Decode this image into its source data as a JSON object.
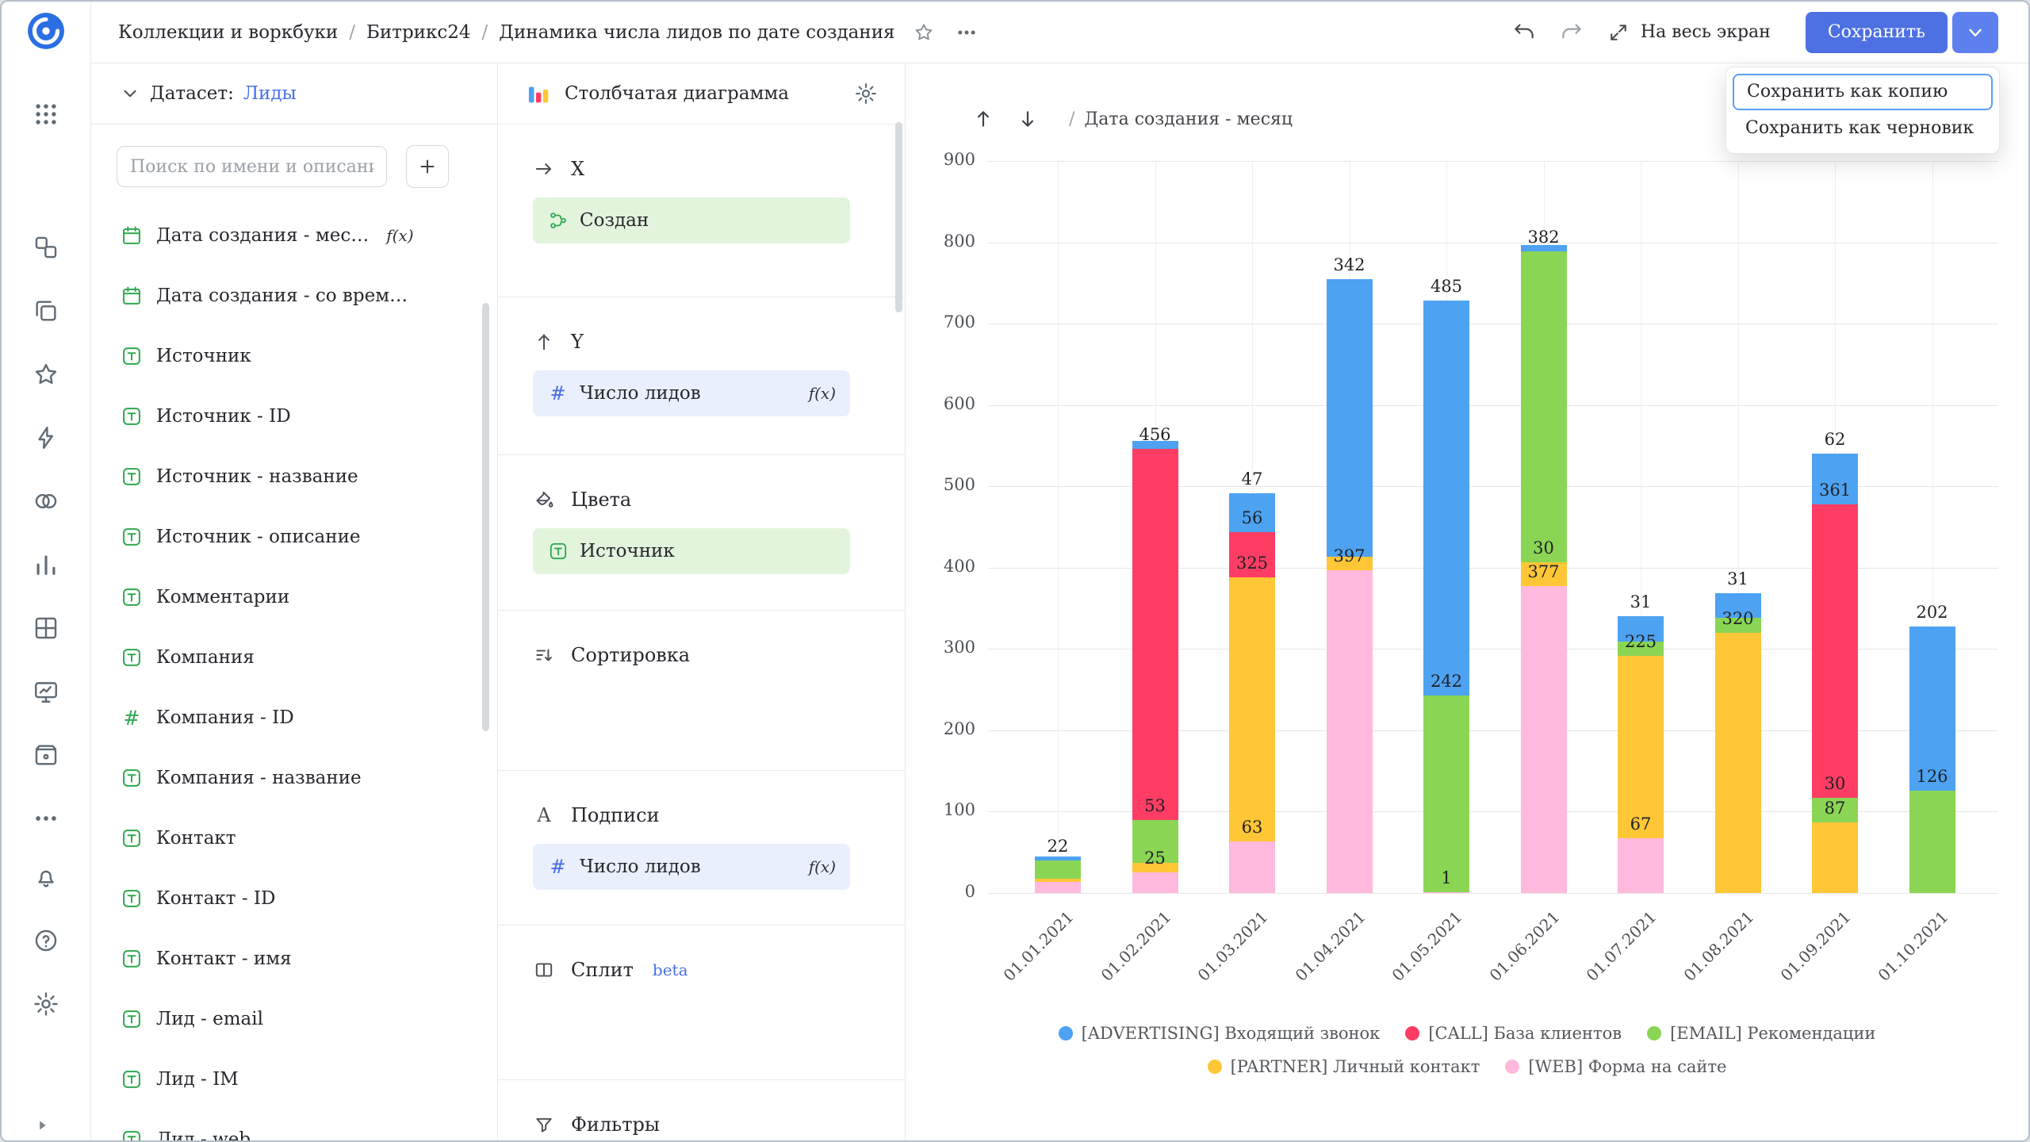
{
  "glyphs": {
    "fx": "f(x)",
    "hash": "#",
    "labels_letter": "A"
  },
  "colors": {
    "accent_blue": "#4d70e2",
    "link_blue": "#4a6fe8",
    "field_green": "#2fa84f"
  },
  "rail_icons": [
    "datalens-logo",
    "services-grid",
    "collections",
    "workbooks",
    "favorites",
    "connections",
    "datasets",
    "charts",
    "dashboards",
    "monitoring",
    "storage",
    "more",
    "notifications",
    "help",
    "settings",
    "collapse-sidebar"
  ],
  "header": {
    "breadcrumbs": [
      "Коллекции и воркбуки",
      "Битрикс24",
      "Динамика числа лидов по дате создания"
    ],
    "breadcrumb_separator": "/",
    "fullscreen_label": "На весь экран",
    "save_label": "Сохранить"
  },
  "save_menu": {
    "items": [
      {
        "label": "Сохранить как копию",
        "focused": true
      },
      {
        "label": "Сохранить как черновик",
        "focused": false
      }
    ]
  },
  "dataset_panel": {
    "dataset_label": "Датасет:",
    "dataset_name": "Лиды",
    "search_placeholder": "Поиск по имени и описани",
    "fields": [
      {
        "label": "Дата создания - мес…",
        "icon": "calendar",
        "fx": true
      },
      {
        "label": "Дата создания - со врем…",
        "icon": "calendar",
        "fx": false
      },
      {
        "label": "Источник",
        "icon": "string",
        "fx": false
      },
      {
        "label": "Источник - ID",
        "icon": "string",
        "fx": false
      },
      {
        "label": "Источник - название",
        "icon": "string",
        "fx": false
      },
      {
        "label": "Источник - описание",
        "icon": "string",
        "fx": false
      },
      {
        "label": "Комментарии",
        "icon": "string",
        "fx": false
      },
      {
        "label": "Компания",
        "icon": "string",
        "fx": false
      },
      {
        "label": "Компания - ID",
        "icon": "number",
        "fx": false
      },
      {
        "label": "Компания - название",
        "icon": "string",
        "fx": false
      },
      {
        "label": "Контакт",
        "icon": "string",
        "fx": false
      },
      {
        "label": "Контакт - ID",
        "icon": "string",
        "fx": false
      },
      {
        "label": "Контакт - имя",
        "icon": "string",
        "fx": false
      },
      {
        "label": "Лид - email",
        "icon": "string",
        "fx": false
      },
      {
        "label": "Лид - IM",
        "icon": "string",
        "fx": false
      },
      {
        "label": "Лид - web",
        "icon": "string",
        "fx": false
      }
    ]
  },
  "config_panel": {
    "chart_type_label": "Столбчатая диаграмма",
    "sections": {
      "x": {
        "label": "X"
      },
      "y": {
        "label": "Y"
      },
      "colors": {
        "label": "Цвета"
      },
      "sort": {
        "label": "Сортировка"
      },
      "labels": {
        "label": "Подписи"
      },
      "split": {
        "label": "Сплит",
        "badge": "beta"
      },
      "filters": {
        "label": "Фильтры"
      }
    },
    "pills": {
      "x": {
        "label": "Создан",
        "kind": "dimension",
        "icon": "hierarchy-icon",
        "fx": false
      },
      "y": {
        "label": "Число лидов",
        "kind": "measure",
        "icon": "hash-icon",
        "fx": true
      },
      "colors": {
        "label": "Источник",
        "kind": "dimension",
        "icon": "string-icon",
        "fx": false
      },
      "labels": {
        "label": "Число лидов",
        "kind": "measure",
        "icon": "hash-icon",
        "fx": true
      }
    }
  },
  "chart_header": {
    "separator": "/",
    "x_field": "Дата создания - месяц"
  },
  "chart_data": {
    "type": "bar",
    "stacked": true,
    "title": "",
    "xlabel": "Дата создания - месяц",
    "ylabel": "Число лидов",
    "categories": [
      "01.01.2021",
      "01.02.2021",
      "01.03.2021",
      "01.04.2021",
      "01.05.2021",
      "01.06.2021",
      "01.07.2021",
      "01.08.2021",
      "01.09.2021",
      "01.10.2021"
    ],
    "series": [
      {
        "name": "[WEB] Форма на сайте",
        "color": "#ffb9dd",
        "values": [
          14,
          25,
          63,
          397,
          1,
          377,
          67,
          0,
          0,
          0
        ],
        "labeled": [
          false,
          true,
          true,
          true,
          true,
          true,
          true,
          false,
          false,
          false
        ]
      },
      {
        "name": "[PARTNER] Личный контакт",
        "color": "#ffc636",
        "values": [
          4,
          12,
          325,
          16,
          0,
          30,
          225,
          320,
          87,
          0
        ],
        "labeled": [
          false,
          false,
          true,
          false,
          false,
          true,
          true,
          true,
          true,
          false
        ]
      },
      {
        "name": "[EMAIL] Рекомендации",
        "color": "#8ad554",
        "values": [
          22,
          53,
          0,
          0,
          242,
          382,
          17,
          18,
          30,
          126
        ],
        "labeled": [
          true,
          true,
          false,
          false,
          true,
          true,
          false,
          false,
          true,
          true
        ]
      },
      {
        "name": "[CALL] База клиентов",
        "color": "#ff3d64",
        "values": [
          0,
          456,
          56,
          0,
          0,
          0,
          0,
          0,
          361,
          0
        ],
        "labeled": [
          false,
          true,
          true,
          false,
          false,
          false,
          false,
          false,
          true,
          false
        ]
      },
      {
        "name": "[ADVERTISING] Входящий звонок",
        "color": "#4da2f1",
        "values": [
          5,
          10,
          47,
          342,
          485,
          8,
          31,
          31,
          62,
          202
        ],
        "labeled": [
          false,
          false,
          true,
          true,
          true,
          false,
          true,
          true,
          true,
          true
        ]
      }
    ],
    "legend": [
      "[ADVERTISING] Входящий звонок",
      "[CALL] База клиентов",
      "[EMAIL] Рекомендации",
      "[PARTNER] Личный контакт",
      "[WEB] Форма на сайте"
    ],
    "ylim": [
      0,
      900
    ],
    "yticks": [
      0,
      100,
      200,
      300,
      400,
      500,
      600,
      700,
      800,
      900
    ],
    "legend_position": "bottom",
    "grid": true
  }
}
